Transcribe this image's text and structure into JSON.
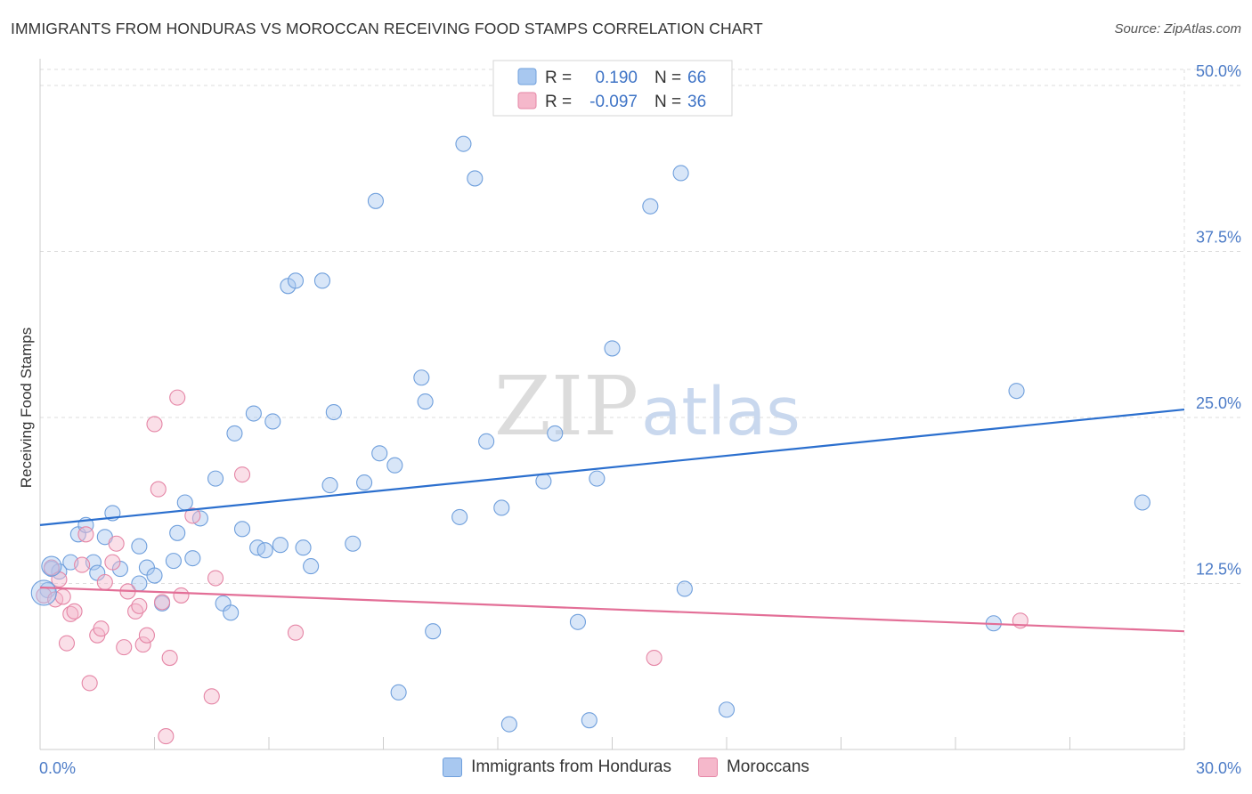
{
  "chart_data": {
    "type": "scatter",
    "title": "IMMIGRANTS FROM HONDURAS VS MOROCCAN RECEIVING FOOD STAMPS CORRELATION CHART",
    "source": "Source: ZipAtlas.com",
    "ylabel": "Receiving Food Stamps",
    "xlim": [
      0,
      30
    ],
    "ylim": [
      0,
      50
    ],
    "x_tick_labels": {
      "left": "0.0%",
      "right": "30.0%"
    },
    "y_ticks": [
      {
        "value": 12.5,
        "label": "12.5%"
      },
      {
        "value": 25.0,
        "label": "25.0%"
      },
      {
        "value": 37.5,
        "label": "37.5%"
      },
      {
        "value": 50.0,
        "label": "50.0%"
      }
    ],
    "watermark": {
      "zip": "ZIP",
      "atlas": "atlas"
    },
    "series": [
      {
        "name": "Immigrants from Honduras",
        "color": "#a8c8f0",
        "edge": "#6f9fdc",
        "line_color": "#2b6fce",
        "r_label": "R =",
        "r_value": "0.190",
        "n_label": "N =",
        "n_value": "66",
        "trend": {
          "y_at_xmin": 16.9,
          "y_at_xmax": 25.6
        },
        "points": [
          [
            0.2,
            12.0
          ],
          [
            0.3,
            13.6
          ],
          [
            0.5,
            13.4
          ],
          [
            0.8,
            14.1
          ],
          [
            1.0,
            16.2
          ],
          [
            1.2,
            16.9
          ],
          [
            1.4,
            14.1
          ],
          [
            1.5,
            13.3
          ],
          [
            1.7,
            16.0
          ],
          [
            1.9,
            17.8
          ],
          [
            2.1,
            13.6
          ],
          [
            2.6,
            15.3
          ],
          [
            2.8,
            13.7
          ],
          [
            3.0,
            13.1
          ],
          [
            3.2,
            11.0
          ],
          [
            3.5,
            14.2
          ],
          [
            3.6,
            16.3
          ],
          [
            3.8,
            18.6
          ],
          [
            4.0,
            14.4
          ],
          [
            4.2,
            17.4
          ],
          [
            4.6,
            20.4
          ],
          [
            4.8,
            11.0
          ],
          [
            5.0,
            10.3
          ],
          [
            5.1,
            23.8
          ],
          [
            5.3,
            16.6
          ],
          [
            5.6,
            25.3
          ],
          [
            5.7,
            15.2
          ],
          [
            5.9,
            15.0
          ],
          [
            6.1,
            24.7
          ],
          [
            6.3,
            15.4
          ],
          [
            6.5,
            34.9
          ],
          [
            6.7,
            35.3
          ],
          [
            6.9,
            15.2
          ],
          [
            7.1,
            13.8
          ],
          [
            7.4,
            35.3
          ],
          [
            7.6,
            19.9
          ],
          [
            7.7,
            25.4
          ],
          [
            8.2,
            15.5
          ],
          [
            8.5,
            20.1
          ],
          [
            8.8,
            41.3
          ],
          [
            8.9,
            22.3
          ],
          [
            9.4,
            4.3
          ],
          [
            9.3,
            21.4
          ],
          [
            10.0,
            28.0
          ],
          [
            10.1,
            26.2
          ],
          [
            10.3,
            8.9
          ],
          [
            11.0,
            17.5
          ],
          [
            11.1,
            45.6
          ],
          [
            11.4,
            43.0
          ],
          [
            11.7,
            23.2
          ],
          [
            12.1,
            18.2
          ],
          [
            12.3,
            1.9
          ],
          [
            13.2,
            20.2
          ],
          [
            13.5,
            23.8
          ],
          [
            14.1,
            9.6
          ],
          [
            14.4,
            2.2
          ],
          [
            14.6,
            20.4
          ],
          [
            15.0,
            30.2
          ],
          [
            16.0,
            40.9
          ],
          [
            16.8,
            43.4
          ],
          [
            16.9,
            12.1
          ],
          [
            18.0,
            3.0
          ],
          [
            25.0,
            9.5
          ],
          [
            25.6,
            27.0
          ],
          [
            28.9,
            18.6
          ],
          [
            2.6,
            12.5
          ]
        ]
      },
      {
        "name": "Moroccans",
        "color": "#f5b8cb",
        "edge": "#e586a6",
        "line_color": "#e36f97",
        "r_label": "R =",
        "r_value": "-0.097",
        "n_label": "N =",
        "n_value": "36",
        "trend": {
          "y_at_xmin": 12.2,
          "y_at_xmax": 8.9
        },
        "points": [
          [
            0.1,
            11.6
          ],
          [
            0.3,
            13.7
          ],
          [
            0.4,
            11.3
          ],
          [
            0.5,
            12.8
          ],
          [
            0.6,
            11.5
          ],
          [
            0.7,
            8.0
          ],
          [
            0.8,
            10.2
          ],
          [
            0.9,
            10.4
          ],
          [
            1.1,
            13.9
          ],
          [
            1.2,
            16.2
          ],
          [
            1.3,
            5.0
          ],
          [
            1.5,
            8.6
          ],
          [
            1.6,
            9.1
          ],
          [
            1.7,
            12.6
          ],
          [
            1.9,
            14.1
          ],
          [
            2.0,
            15.5
          ],
          [
            2.2,
            7.7
          ],
          [
            2.3,
            11.9
          ],
          [
            2.5,
            10.4
          ],
          [
            2.6,
            10.8
          ],
          [
            2.7,
            7.9
          ],
          [
            2.8,
            8.6
          ],
          [
            3.0,
            24.5
          ],
          [
            3.1,
            19.6
          ],
          [
            3.2,
            11.1
          ],
          [
            3.4,
            6.9
          ],
          [
            3.6,
            26.5
          ],
          [
            3.7,
            11.6
          ],
          [
            4.0,
            17.6
          ],
          [
            4.5,
            4.0
          ],
          [
            4.6,
            12.9
          ],
          [
            5.3,
            20.7
          ],
          [
            6.7,
            8.8
          ],
          [
            16.1,
            6.9
          ],
          [
            25.7,
            9.7
          ],
          [
            3.3,
            1.0
          ]
        ]
      }
    ]
  }
}
